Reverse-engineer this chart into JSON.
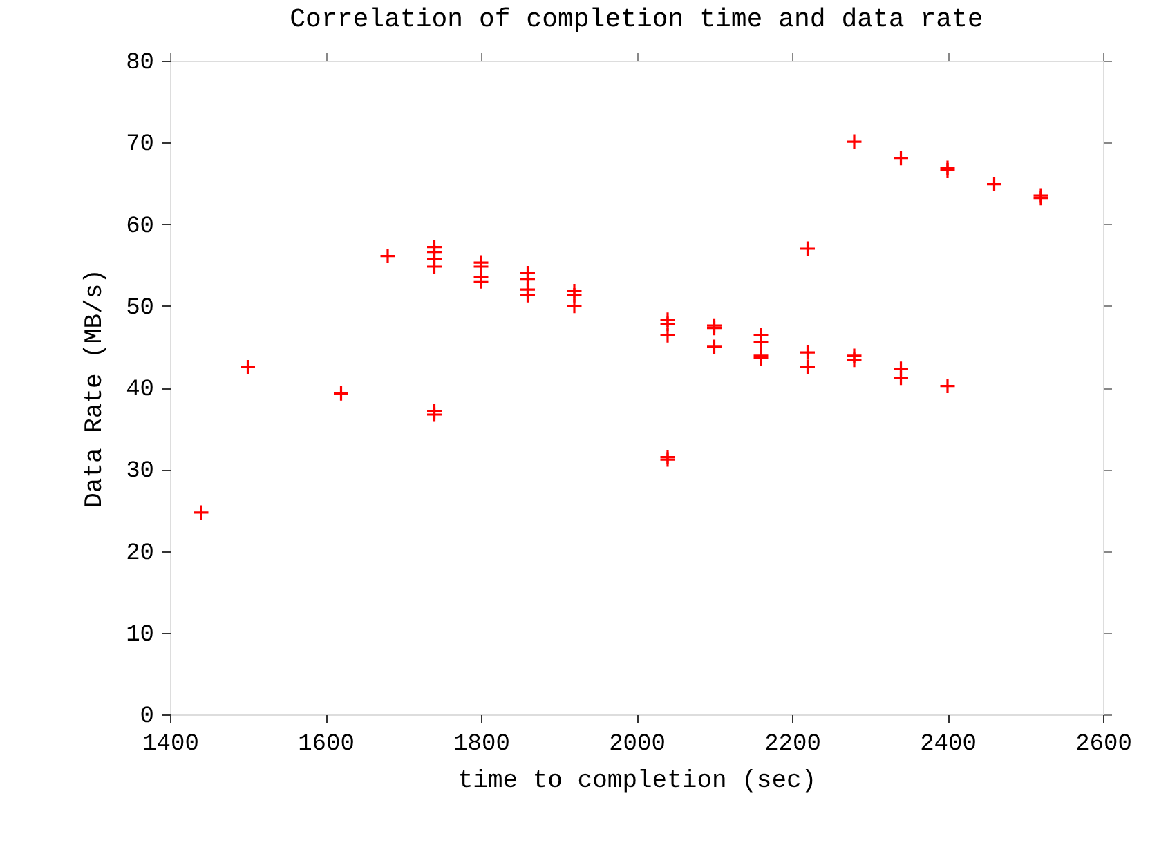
{
  "chart_data": {
    "type": "scatter",
    "title": "Correlation of completion time and data rate",
    "xlabel": "time to completion (sec)",
    "ylabel": "Data Rate (MB/s)",
    "xlim": [
      1400,
      2600
    ],
    "xticks": [
      1400,
      1600,
      1800,
      2000,
      2200,
      2400,
      2600
    ],
    "ylim": [
      0,
      80
    ],
    "yticks": [
      0,
      10,
      20,
      30,
      40,
      50,
      60,
      70,
      80
    ],
    "grid": false,
    "legend": false,
    "marker": "cross",
    "series": [
      {
        "color": "#ff0000",
        "x": [
          1440,
          1500,
          1620,
          1680,
          1740,
          1740,
          1740,
          1740,
          1740,
          1740,
          1800,
          1800,
          1800,
          1800,
          1860,
          1860,
          1860,
          1860,
          1920,
          1920,
          1920,
          2040,
          2040,
          2040,
          2040,
          2040,
          2100,
          2100,
          2100,
          2160,
          2160,
          2160,
          2160,
          2220,
          2220,
          2220,
          2280,
          2280,
          2280,
          2340,
          2340,
          2340,
          2400,
          2400,
          2400,
          2460,
          2520,
          2520
        ],
        "values": [
          24.7,
          42.5,
          39.3,
          56.1,
          57.2,
          56.6,
          55.7,
          54.8,
          37.1,
          36.7,
          55.3,
          54.8,
          53.5,
          53.0,
          54.0,
          53.3,
          52.0,
          51.3,
          51.8,
          51.3,
          50.0,
          48.3,
          47.8,
          46.4,
          31.5,
          31.2,
          47.6,
          47.3,
          45.0,
          46.4,
          45.6,
          43.9,
          43.6,
          57.0,
          44.3,
          42.5,
          70.1,
          43.9,
          43.4,
          68.1,
          42.3,
          41.2,
          66.9,
          66.6,
          40.2,
          64.9,
          63.5,
          63.2
        ]
      }
    ]
  }
}
